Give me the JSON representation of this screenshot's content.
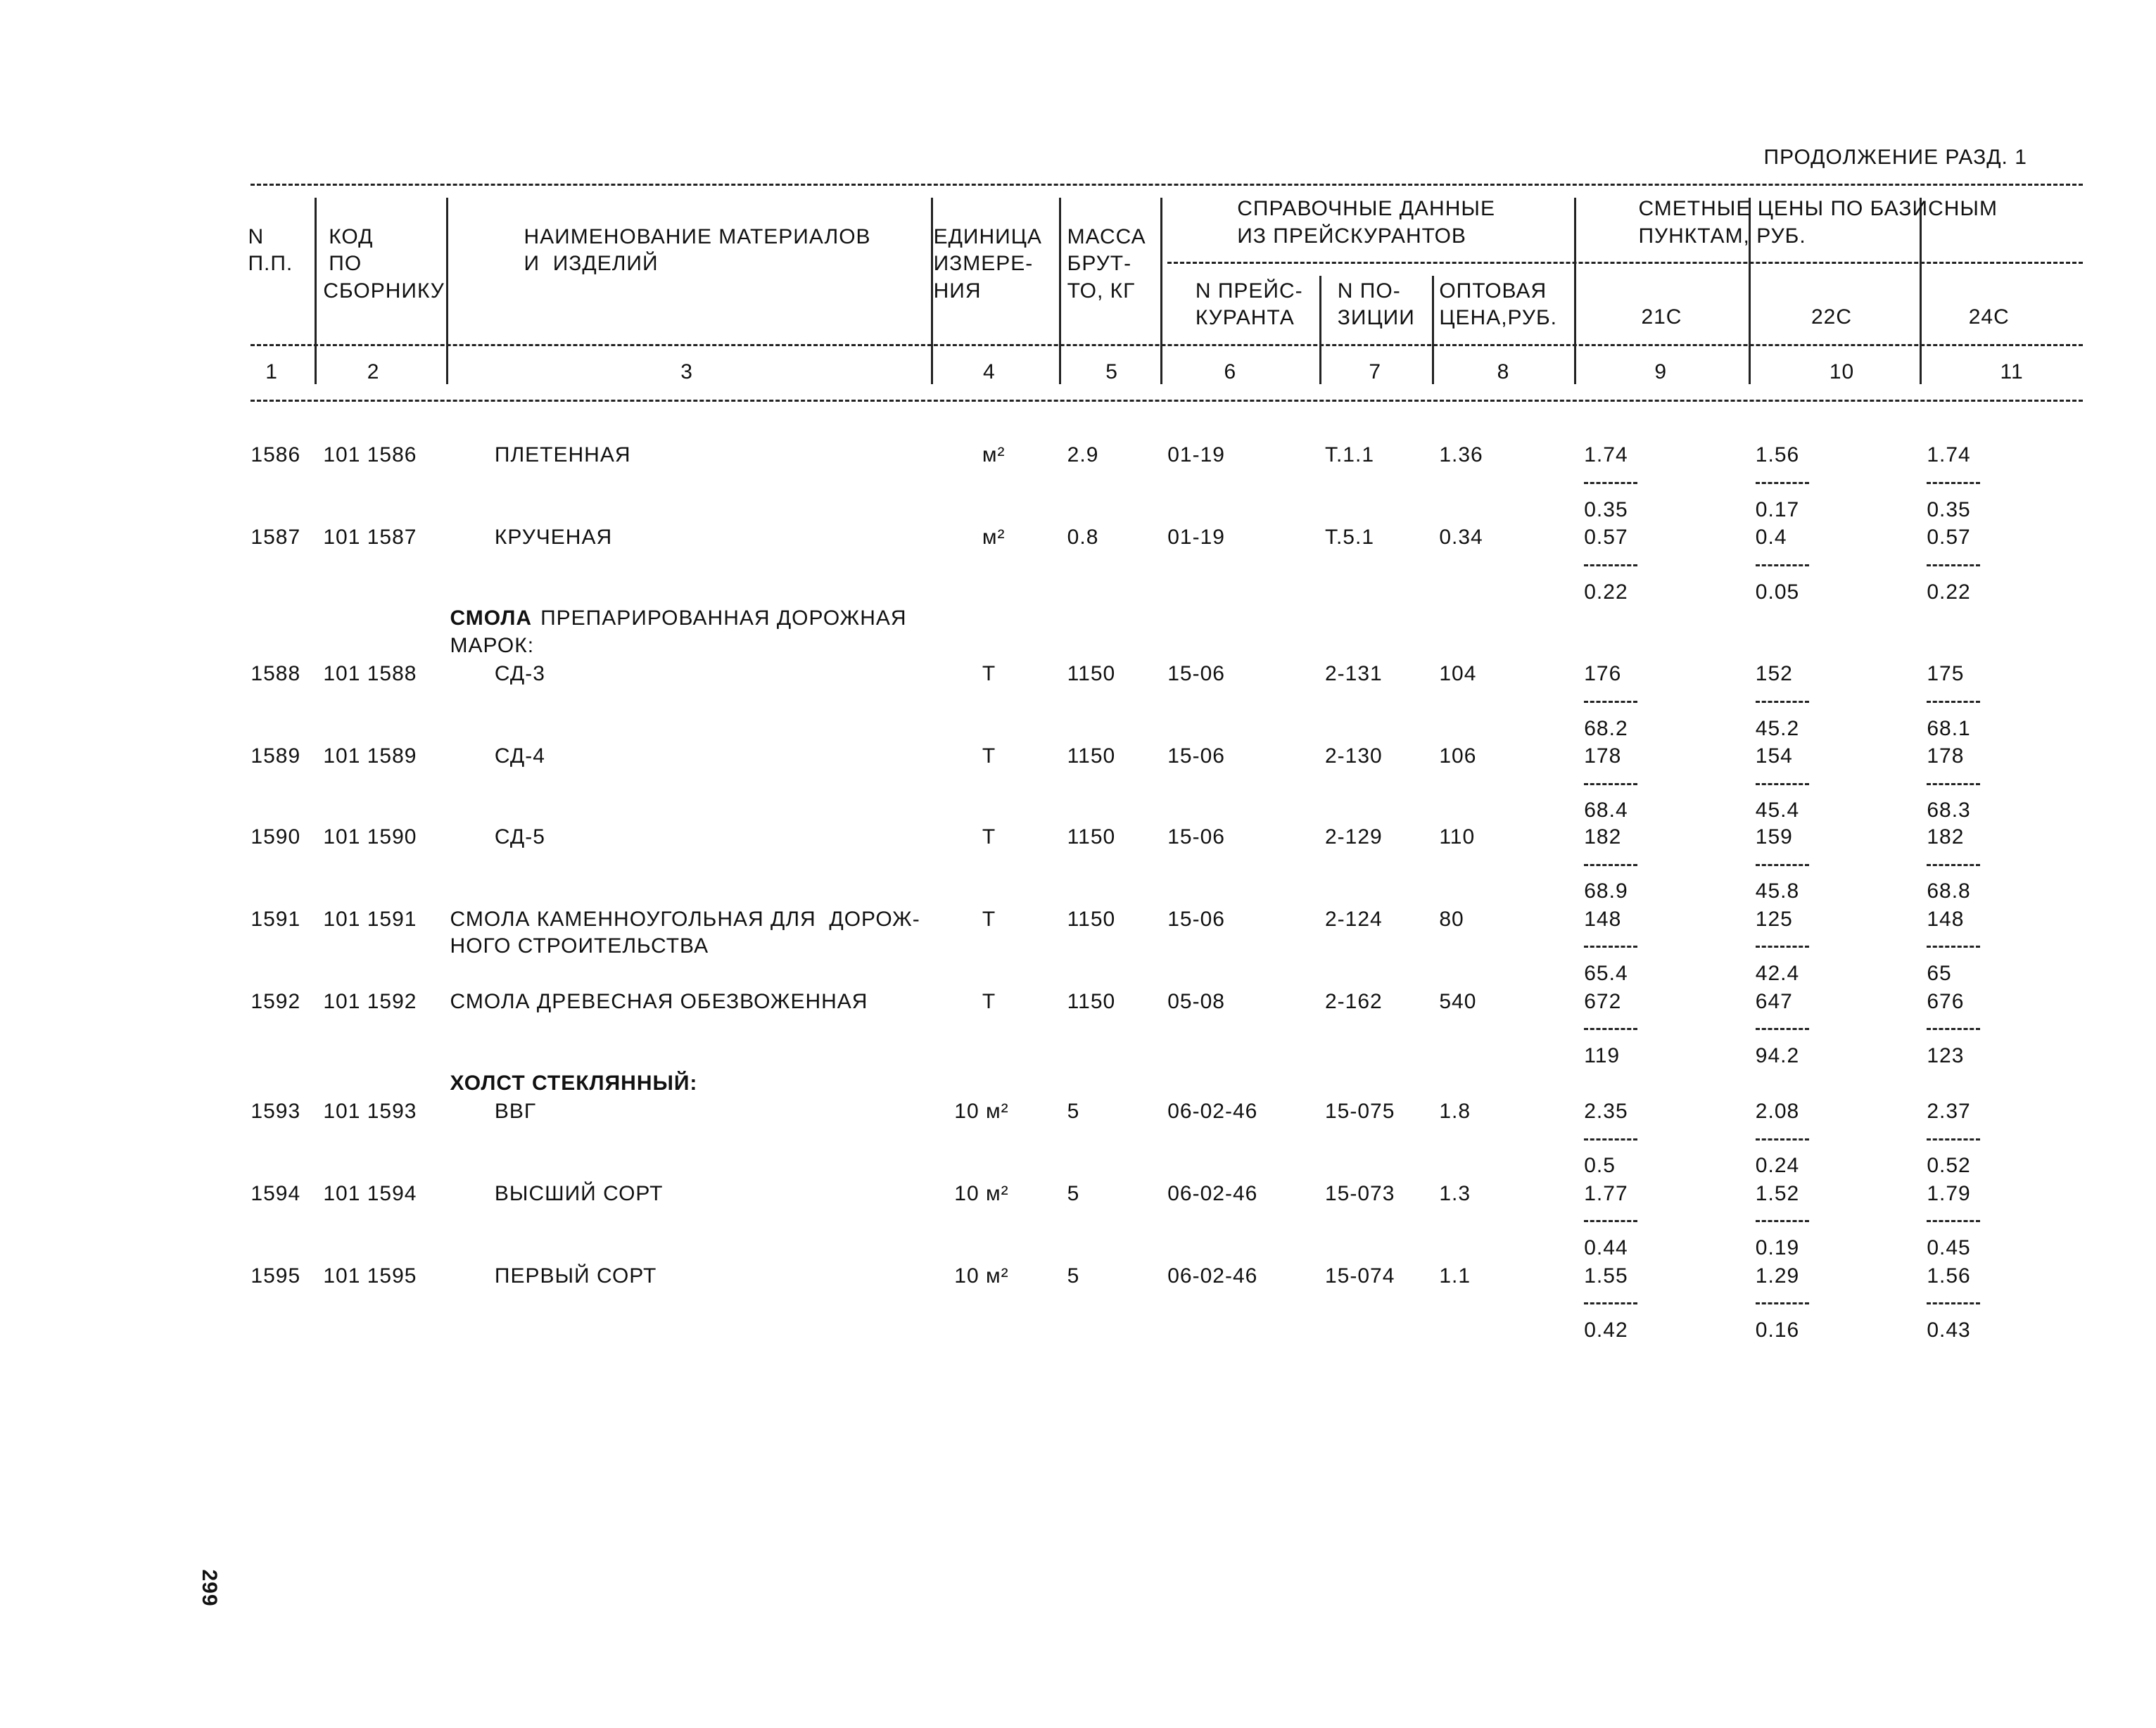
{
  "header": {
    "continuation": "ПРОДОЛЖЕНИЕ РАЗД. 1",
    "page_number": "299"
  },
  "table": {
    "columns": [
      {
        "lines": [
          "N",
          "П.П."
        ]
      },
      {
        "lines": [
          "КОД",
          "ПО",
          "СБОРНИКУ"
        ]
      },
      {
        "lines": [
          "НАИМЕНОВАНИЕ МАТЕРИАЛОВ",
          "И  ИЗДЕЛИЙ"
        ]
      },
      {
        "lines": [
          "ЕДИНИЦА",
          "ИЗМЕРЕ-",
          "НИЯ"
        ]
      },
      {
        "lines": [
          "МАССА",
          "БРУТ-",
          "ТО, КГ"
        ]
      },
      {
        "lines": [
          "СПРАВОЧНЫЕ ДАННЫЕ",
          "ИЗ ПРЕЙСКУРАНТОВ"
        ],
        "sub": [
          {
            "lines": [
              "N ПРЕЙС-",
              "КУРАНТА"
            ]
          },
          {
            "lines": [
              "N ПО-",
              "ЗИЦИИ"
            ]
          },
          {
            "lines": [
              "ОПТОВАЯ",
              "ЦЕНА,РУБ."
            ]
          }
        ]
      },
      {
        "lines": [
          "СМЕТНЫЕ ЦЕНЫ ПО БАЗИСНЫМ",
          "ПУНКТАМ, РУБ."
        ],
        "sub": [
          {
            "lines": [
              "21С"
            ]
          },
          {
            "lines": [
              "22С"
            ]
          },
          {
            "lines": [
              "24С"
            ]
          }
        ]
      }
    ],
    "column_numbers": [
      "1",
      "2",
      "3",
      "4",
      "5",
      "6",
      "7",
      "8",
      "9",
      "10",
      "11"
    ],
    "rows": [
      {
        "number": "1586",
        "code": "101 1586",
        "name": [
          "ПЛЕТЕННАЯ"
        ],
        "unit": "м²",
        "mass": "2.9",
        "price_list": "01-19",
        "position": "Т.1.1",
        "wholesale": "1.36",
        "prices": [
          {
            "top": "1.74",
            "bottom": "0.35"
          },
          {
            "top": "1.56",
            "bottom": "0.17"
          },
          {
            "top": "1.74",
            "bottom": "0.35"
          }
        ]
      },
      {
        "number": "1587",
        "code": "101 1587",
        "name": [
          "КРУЧЕНАЯ"
        ],
        "unit": "м²",
        "mass": "0.8",
        "price_list": "01-19",
        "position": "Т.5.1",
        "wholesale": "0.34",
        "prices": [
          {
            "top": "0.57",
            "bottom": "0.22"
          },
          {
            "top": "0.4",
            "bottom": "0.05"
          },
          {
            "top": "0.57",
            "bottom": "0.22"
          }
        ]
      },
      {
        "heading": {
          "bold": "СМОЛА",
          "rest": [
            "ПРЕПАРИРОВАННАЯ ДОРОЖНАЯ",
            "МАРОК:"
          ]
        }
      },
      {
        "number": "1588",
        "code": "101 1588",
        "name": [
          "СД-3"
        ],
        "unit": "Т",
        "mass": "1150",
        "price_list": "15-06",
        "position": "2-131",
        "wholesale": "104",
        "prices": [
          {
            "top": "176",
            "bottom": "68.2"
          },
          {
            "top": "152",
            "bottom": "45.2"
          },
          {
            "top": "175",
            "bottom": "68.1"
          }
        ]
      },
      {
        "number": "1589",
        "code": "101 1589",
        "name": [
          "СД-4"
        ],
        "unit": "Т",
        "mass": "1150",
        "price_list": "15-06",
        "position": "2-130",
        "wholesale": "106",
        "prices": [
          {
            "top": "178",
            "bottom": "68.4"
          },
          {
            "top": "154",
            "bottom": "45.4"
          },
          {
            "top": "178",
            "bottom": "68.3"
          }
        ]
      },
      {
        "number": "1590",
        "code": "101 1590",
        "name": [
          "СД-5"
        ],
        "unit": "Т",
        "mass": "1150",
        "price_list": "15-06",
        "position": "2-129",
        "wholesale": "110",
        "prices": [
          {
            "top": "182",
            "bottom": "68.9"
          },
          {
            "top": "159",
            "bottom": "45.8"
          },
          {
            "top": "182",
            "bottom": "68.8"
          }
        ]
      },
      {
        "number": "1591",
        "code": "101 1591",
        "name": [
          "СМОЛА КАМЕННОУГОЛЬНАЯ ДЛЯ  ДОРОЖ-",
          "НОГО СТРОИТЕЛЬСТВА"
        ],
        "unit": "Т",
        "mass": "1150",
        "price_list": "15-06",
        "position": "2-124",
        "wholesale": "80",
        "prices": [
          {
            "top": "148",
            "bottom": "65.4"
          },
          {
            "top": "125",
            "bottom": "42.4"
          },
          {
            "top": "148",
            "bottom": "65"
          }
        ]
      },
      {
        "number": "1592",
        "code": "101 1592",
        "name": [
          "СМОЛА ДРЕВЕСНАЯ ОБЕЗВОЖЕННАЯ"
        ],
        "unit": "Т",
        "mass": "1150",
        "price_list": "05-08",
        "position": "2-162",
        "wholesale": "540",
        "prices": [
          {
            "top": "672",
            "bottom": "119"
          },
          {
            "top": "647",
            "bottom": "94.2"
          },
          {
            "top": "676",
            "bottom": "123"
          }
        ]
      },
      {
        "heading": {
          "bold": "ХОЛСТ СТЕКЛЯННЫЙ:",
          "rest": []
        }
      },
      {
        "number": "1593",
        "code": "101 1593",
        "name": [
          "ВВГ"
        ],
        "unit": "10 м²",
        "mass": "5",
        "price_list": "06-02-46",
        "position": "15-075",
        "wholesale": "1.8",
        "prices": [
          {
            "top": "2.35",
            "bottom": "0.5"
          },
          {
            "top": "2.08",
            "bottom": "0.24"
          },
          {
            "top": "2.37",
            "bottom": "0.52"
          }
        ]
      },
      {
        "number": "1594",
        "code": "101 1594",
        "name": [
          "ВЫСШИЙ СОРТ"
        ],
        "unit": "10 м²",
        "mass": "5",
        "price_list": "06-02-46",
        "position": "15-073",
        "wholesale": "1.3",
        "prices": [
          {
            "top": "1.77",
            "bottom": "0.44"
          },
          {
            "top": "1.52",
            "bottom": "0.19"
          },
          {
            "top": "1.79",
            "bottom": "0.45"
          }
        ]
      },
      {
        "number": "1595",
        "code": "101 1595",
        "name": [
          "ПЕРВЫЙ СОРТ"
        ],
        "unit": "10 м²",
        "mass": "5",
        "price_list": "06-02-46",
        "position": "15-074",
        "wholesale": "1.1",
        "prices": [
          {
            "top": "1.55",
            "bottom": "0.42"
          },
          {
            "top": "1.29",
            "bottom": "0.16"
          },
          {
            "top": "1.56",
            "bottom": "0.43"
          }
        ]
      }
    ]
  }
}
